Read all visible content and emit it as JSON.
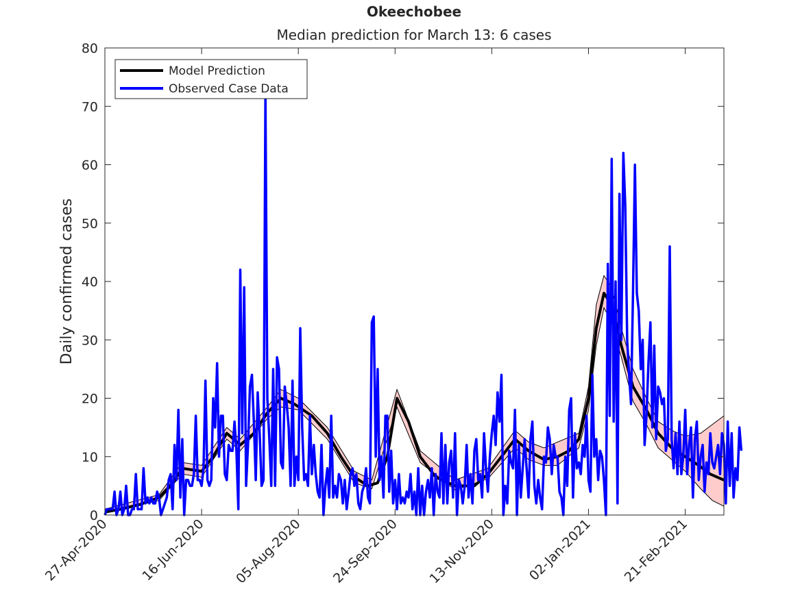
{
  "chart_data": {
    "type": "line",
    "title": "Okeechobee",
    "subtitle": "Median prediction for March 13: 6 cases",
    "xlabel": "",
    "ylabel": "Daily confirmed cases",
    "ylim": [
      0,
      80
    ],
    "yticks": [
      0,
      10,
      20,
      30,
      40,
      50,
      60,
      70,
      80
    ],
    "xlim": [
      "2020-04-27",
      "2021-03-13"
    ],
    "xticks": [
      {
        "date": "2020-04-27",
        "label": "27-Apr-2020"
      },
      {
        "date": "2020-06-16",
        "label": "16-Jun-2020"
      },
      {
        "date": "2020-08-05",
        "label": "05-Aug-2020"
      },
      {
        "date": "2020-09-24",
        "label": "24-Sep-2020"
      },
      {
        "date": "2020-11-13",
        "label": "13-Nov-2020"
      },
      {
        "date": "2021-01-02",
        "label": "02-Jan-2021"
      },
      {
        "date": "2021-02-21",
        "label": "21-Feb-2021"
      }
    ],
    "grid": false,
    "legend_position": "top-left",
    "series": [
      {
        "name": "Model Prediction",
        "color": "#000000",
        "points": [
          [
            "2020-04-27",
            0.5
          ],
          [
            "2020-05-05",
            1.0
          ],
          [
            "2020-05-15",
            1.8
          ],
          [
            "2020-05-25",
            3.0
          ],
          [
            "2020-06-01",
            5.5
          ],
          [
            "2020-06-06",
            8.0
          ],
          [
            "2020-06-16",
            7.5
          ],
          [
            "2020-06-22",
            10.0
          ],
          [
            "2020-06-29",
            14.0
          ],
          [
            "2020-07-06",
            12.0
          ],
          [
            "2020-07-13",
            14.0
          ],
          [
            "2020-07-20",
            17.5
          ],
          [
            "2020-07-27",
            20.0
          ],
          [
            "2020-08-03",
            19.0
          ],
          [
            "2020-08-12",
            17.0
          ],
          [
            "2020-08-20",
            14.0
          ],
          [
            "2020-08-27",
            10.0
          ],
          [
            "2020-09-03",
            6.5
          ],
          [
            "2020-09-10",
            5.0
          ],
          [
            "2020-09-15",
            5.5
          ],
          [
            "2020-09-20",
            10.0
          ],
          [
            "2020-09-25",
            20.0
          ],
          [
            "2020-10-01",
            16.0
          ],
          [
            "2020-10-07",
            10.0
          ],
          [
            "2020-10-15",
            6.5
          ],
          [
            "2020-10-25",
            5.0
          ],
          [
            "2020-11-04",
            5.0
          ],
          [
            "2020-11-11",
            7.0
          ],
          [
            "2020-11-18",
            10.0
          ],
          [
            "2020-11-25",
            13.0
          ],
          [
            "2020-12-02",
            11.0
          ],
          [
            "2020-12-10",
            9.5
          ],
          [
            "2020-12-17",
            10.0
          ],
          [
            "2020-12-23",
            11.0
          ],
          [
            "2020-12-28",
            13.0
          ],
          [
            "2021-01-02",
            20.0
          ],
          [
            "2021-01-06",
            32.0
          ],
          [
            "2021-01-10",
            38.0
          ],
          [
            "2021-01-14",
            36.0
          ],
          [
            "2021-01-19",
            29.0
          ],
          [
            "2021-01-25",
            22.0
          ],
          [
            "2021-02-01",
            18.0
          ],
          [
            "2021-02-07",
            14.0
          ],
          [
            "2021-02-14",
            11.5
          ],
          [
            "2021-02-21",
            10.0
          ],
          [
            "2021-02-28",
            8.5
          ],
          [
            "2021-03-06",
            7.0
          ],
          [
            "2021-03-13",
            6.0
          ]
        ]
      },
      {
        "name": "Observed Case Data",
        "color": "#0000ff",
        "start": "2020-04-27",
        "values": [
          0,
          1,
          1,
          1,
          1,
          4,
          0,
          1,
          4,
          0,
          1,
          5,
          0,
          0,
          1,
          1,
          7,
          1,
          1,
          1,
          8,
          2,
          3,
          2,
          3,
          2,
          2,
          4,
          3,
          0,
          1,
          2,
          3,
          6,
          7,
          1,
          12,
          6,
          18,
          3,
          13,
          0,
          6,
          6,
          5,
          5,
          7,
          17,
          6,
          6,
          5,
          8,
          23,
          6,
          5,
          6,
          20,
          15,
          26,
          10,
          17,
          17,
          7,
          6,
          12,
          11,
          11,
          16,
          11,
          1,
          42,
          14,
          39,
          5,
          12,
          22,
          24,
          16,
          6,
          21,
          14,
          5,
          6,
          72,
          20,
          13,
          5,
          25,
          5,
          27,
          25,
          9,
          8,
          22,
          19,
          15,
          5,
          23,
          5,
          10,
          6,
          32,
          15,
          6,
          7,
          5,
          17,
          7,
          12,
          7,
          4,
          3,
          12,
          0,
          5,
          8,
          3,
          17,
          3,
          5,
          3,
          7,
          6,
          2,
          6,
          1,
          4,
          7,
          8,
          5,
          7,
          2,
          1,
          4,
          5,
          8,
          3,
          2,
          33,
          34,
          10,
          25,
          6,
          10,
          3,
          17,
          17,
          4,
          11,
          2,
          6,
          1,
          7,
          2,
          3,
          2,
          4,
          3,
          7,
          1,
          4,
          0,
          8,
          0,
          5,
          0,
          4,
          6,
          3,
          8,
          0,
          7,
          4,
          3,
          14,
          2,
          12,
          2,
          9,
          11,
          3,
          14,
          0,
          6,
          5,
          2,
          5,
          12,
          3,
          7,
          2,
          11,
          13,
          6,
          7,
          3,
          14,
          8,
          4,
          10,
          14,
          17,
          12,
          21,
          16,
          24,
          0,
          5,
          2,
          11,
          9,
          8,
          18,
          0,
          12,
          3,
          8,
          13,
          8,
          3,
          13,
          16,
          5,
          2,
          6,
          3,
          1,
          10,
          9,
          15,
          13,
          7,
          12,
          10,
          10,
          4,
          3,
          0,
          10,
          5,
          18,
          20,
          3,
          14,
          8,
          9,
          7,
          12,
          10,
          17,
          6,
          4,
          24,
          10,
          13,
          6,
          11,
          10,
          6,
          0,
          43,
          17,
          61,
          16,
          40,
          2,
          55,
          30,
          62,
          53,
          30,
          24,
          19,
          38,
          60,
          38,
          35,
          25,
          30,
          12,
          17,
          26,
          33,
          15,
          29,
          13,
          22,
          21,
          19,
          20,
          11,
          13,
          46,
          13,
          8,
          14,
          7,
          16,
          7,
          10,
          18,
          7,
          12,
          15,
          3,
          13,
          16,
          6,
          10,
          12,
          4,
          9,
          7,
          14,
          9,
          8,
          10,
          12,
          7,
          14,
          12,
          2,
          16,
          5,
          14,
          3,
          8,
          6,
          15,
          11
        ]
      }
    ],
    "uncertainty_band": {
      "color": "#ffcccc",
      "upper": [
        [
          "2020-04-27",
          1.0
        ],
        [
          "2020-05-25",
          3.5
        ],
        [
          "2020-06-06",
          9.0
        ],
        [
          "2020-06-16",
          8.5
        ],
        [
          "2020-06-29",
          15.0
        ],
        [
          "2020-07-06",
          13.0
        ],
        [
          "2020-07-20",
          18.5
        ],
        [
          "2020-07-27",
          21.5
        ],
        [
          "2020-08-05",
          20.0
        ],
        [
          "2020-08-20",
          15.0
        ],
        [
          "2020-09-03",
          7.5
        ],
        [
          "2020-09-12",
          6.0
        ],
        [
          "2020-09-25",
          21.5
        ],
        [
          "2020-10-07",
          11.0
        ],
        [
          "2020-10-25",
          6.0
        ],
        [
          "2020-11-11",
          8.0
        ],
        [
          "2020-11-25",
          14.5
        ],
        [
          "2020-12-02",
          12.5
        ],
        [
          "2020-12-10",
          11.5
        ],
        [
          "2020-12-17",
          12.5
        ],
        [
          "2020-12-28",
          14.0
        ],
        [
          "2021-01-02",
          22.0
        ],
        [
          "2021-01-06",
          36.0
        ],
        [
          "2021-01-10",
          41.0
        ],
        [
          "2021-01-14",
          39.0
        ],
        [
          "2021-01-19",
          32.0
        ],
        [
          "2021-01-25",
          25.0
        ],
        [
          "2021-02-01",
          20.0
        ],
        [
          "2021-02-07",
          16.0
        ],
        [
          "2021-02-14",
          14.5
        ],
        [
          "2021-02-21",
          13.5
        ],
        [
          "2021-03-01",
          14.0
        ],
        [
          "2021-03-07",
          15.5
        ],
        [
          "2021-03-13",
          17.0
        ]
      ],
      "lower": [
        [
          "2020-04-27",
          0.3
        ],
        [
          "2020-05-25",
          2.5
        ],
        [
          "2020-06-06",
          7.0
        ],
        [
          "2020-06-16",
          6.5
        ],
        [
          "2020-06-29",
          13.0
        ],
        [
          "2020-07-06",
          11.0
        ],
        [
          "2020-07-20",
          16.5
        ],
        [
          "2020-07-27",
          18.5
        ],
        [
          "2020-08-05",
          18.0
        ],
        [
          "2020-08-20",
          13.0
        ],
        [
          "2020-09-03",
          5.5
        ],
        [
          "2020-09-12",
          4.5
        ],
        [
          "2020-09-25",
          18.5
        ],
        [
          "2020-10-07",
          9.0
        ],
        [
          "2020-10-25",
          4.3
        ],
        [
          "2020-11-11",
          6.2
        ],
        [
          "2020-11-25",
          11.5
        ],
        [
          "2020-12-02",
          9.5
        ],
        [
          "2020-12-10",
          8.5
        ],
        [
          "2020-12-17",
          8.5
        ],
        [
          "2020-12-28",
          11.5
        ],
        [
          "2021-01-02",
          18.0
        ],
        [
          "2021-01-06",
          29.0
        ],
        [
          "2021-01-10",
          35.5
        ],
        [
          "2021-01-14",
          33.0
        ],
        [
          "2021-01-19",
          27.0
        ],
        [
          "2021-01-25",
          19.5
        ],
        [
          "2021-02-01",
          15.5
        ],
        [
          "2021-02-07",
          11.5
        ],
        [
          "2021-02-14",
          9.5
        ],
        [
          "2021-02-21",
          7.5
        ],
        [
          "2021-03-01",
          4.5
        ],
        [
          "2021-03-07",
          2.5
        ],
        [
          "2021-03-13",
          1.5
        ]
      ]
    },
    "legend": {
      "items": [
        {
          "label": "Model Prediction",
          "color": "#000000"
        },
        {
          "label": "Observed Case Data",
          "color": "#0000ff"
        }
      ]
    }
  }
}
